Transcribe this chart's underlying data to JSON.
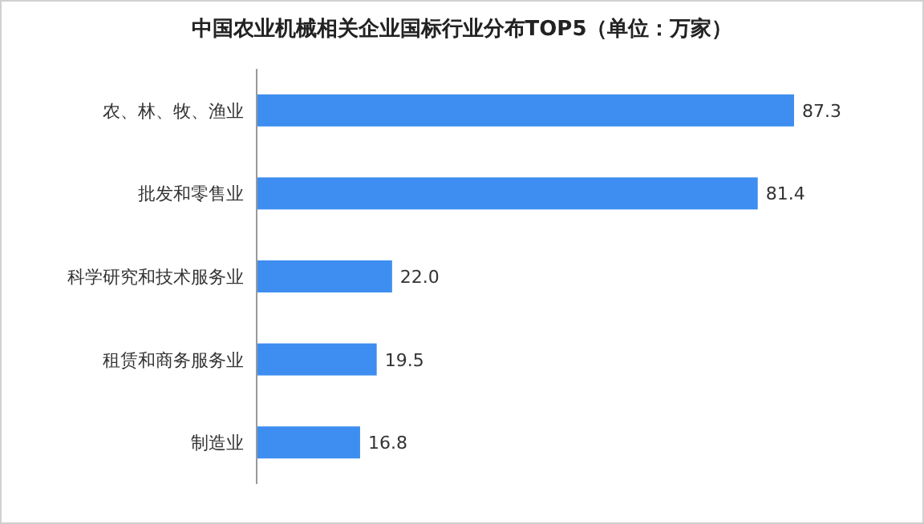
{
  "chart_data": {
    "type": "bar",
    "orientation": "horizontal",
    "title": "中国农业机械相关企业国标行业分布TOP5（单位：万家）",
    "categories": [
      "农、林、牧、渔业",
      "批发和零售业",
      "科学研究和技术服务业",
      "租赁和商务服务业",
      "制造业"
    ],
    "values": [
      87.3,
      81.4,
      22.0,
      19.5,
      16.8
    ],
    "value_labels": [
      "87.3",
      "81.4",
      "22.0",
      "19.5",
      "16.8"
    ],
    "color": "#3d8ef0"
  }
}
